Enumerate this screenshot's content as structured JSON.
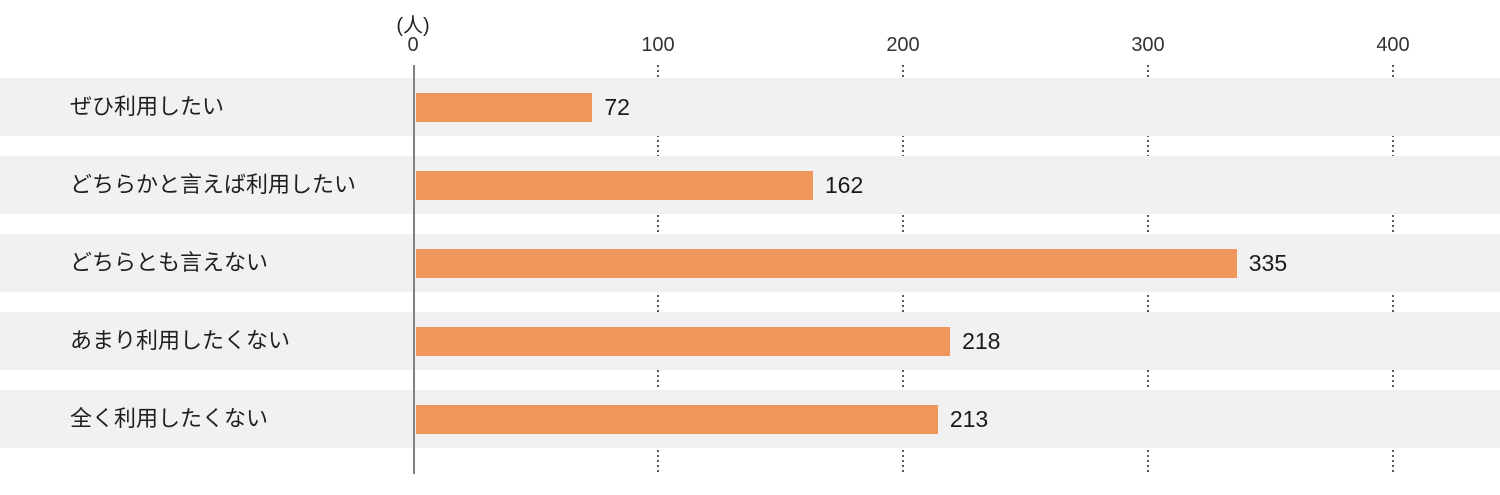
{
  "chart_data": {
    "type": "bar",
    "orientation": "horizontal",
    "title": "",
    "unit_label": "(人)",
    "categories": [
      "ぜひ利用したい",
      "どちらかと言えば利用したい",
      "どちらとも言えない",
      "あまり利用したくない",
      "全く利用したくない"
    ],
    "values": [
      72,
      162,
      335,
      218,
      213
    ],
    "value_labels": [
      "72",
      "162",
      "335",
      "218",
      "213"
    ],
    "x_ticks": [
      0,
      100,
      200,
      300,
      400
    ],
    "x_tick_labels": [
      "0",
      "100",
      "200",
      "300",
      "400"
    ],
    "xlim": [
      0,
      443
    ],
    "grid": "dotted-vertical-at-ticks-visible-in-row-gaps",
    "legend": "none",
    "colors": {
      "bar": "#F0965C",
      "row_band": "#F1F1F1",
      "axis_line": "#808080",
      "grid_dot": "#595959",
      "text": "#1F1F1F",
      "background": "#FFFFFF"
    }
  }
}
